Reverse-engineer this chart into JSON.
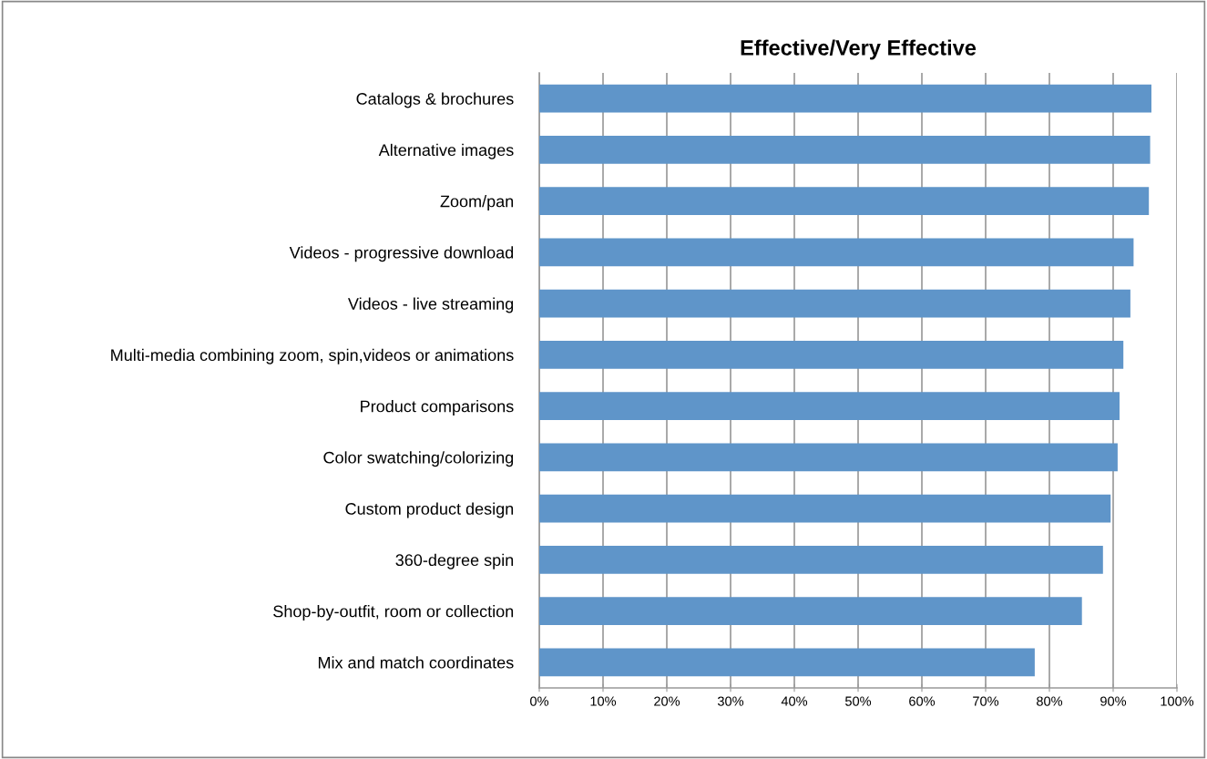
{
  "chart_data": {
    "type": "bar",
    "orientation": "horizontal",
    "title": "Effective/Very Effective",
    "categories": [
      "Catalogs & brochures",
      "Alternative images",
      "Zoom/pan",
      "Videos - progressive download",
      "Videos - live streaming",
      "Multi-media combining zoom, spin,videos or animations",
      "Product comparisons",
      "Color swatching/colorizing",
      "Custom product design",
      "360-degree spin",
      "Shop-by-outfit, room or collection",
      "Mix and match coordinates"
    ],
    "values": [
      96.0,
      95.8,
      95.6,
      93.2,
      92.7,
      91.6,
      91.0,
      90.7,
      89.6,
      88.4,
      85.1,
      77.7
    ],
    "color": "#5f95c9",
    "xlim": [
      0,
      100
    ],
    "xticks": [
      {
        "value": 0,
        "label": "0%"
      },
      {
        "value": 10,
        "label": "10%"
      },
      {
        "value": 20,
        "label": "20%"
      },
      {
        "value": 30,
        "label": "30%"
      },
      {
        "value": 40,
        "label": "40%"
      },
      {
        "value": 50,
        "label": "50%"
      },
      {
        "value": 60,
        "label": "60%"
      },
      {
        "value": 70,
        "label": "70%"
      },
      {
        "value": 80,
        "label": "80%"
      },
      {
        "value": 90,
        "label": "90%"
      },
      {
        "value": 100,
        "label": "100%"
      }
    ],
    "grid": "x",
    "legend": false
  }
}
